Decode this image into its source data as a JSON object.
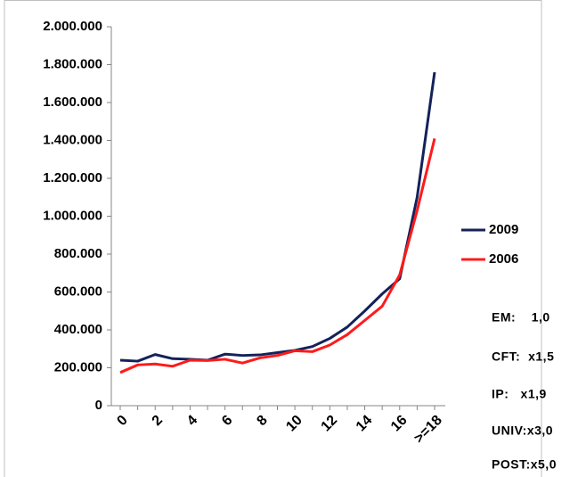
{
  "chart_data": {
    "type": "line",
    "categories": [
      "0",
      null,
      "2",
      null,
      "4",
      null,
      "6",
      null,
      "8",
      null,
      "10",
      null,
      "12",
      null,
      "14",
      null,
      "16",
      null,
      ">=18"
    ],
    "series": [
      {
        "name": "2009",
        "color": "#14225a",
        "values": [
          240000,
          235000,
          270000,
          248000,
          245000,
          240000,
          272000,
          265000,
          268000,
          280000,
          292000,
          312000,
          355000,
          415000,
          500000,
          590000,
          670000,
          1100000,
          1760000
        ]
      },
      {
        "name": "2006",
        "color": "#ff1a1a",
        "values": [
          175000,
          215000,
          220000,
          208000,
          240000,
          238000,
          245000,
          225000,
          252000,
          265000,
          290000,
          285000,
          320000,
          375000,
          450000,
          525000,
          690000,
          1030000,
          1410000
        ]
      }
    ],
    "ylim": [
      0,
      2000000
    ],
    "yticks": [
      0,
      {
        "value": 200000,
        "label": "200.000"
      },
      {
        "value": 400000,
        "label": "400.000"
      },
      {
        "value": 600000,
        "label": "600.000"
      },
      {
        "value": 800000,
        "label": "800.000"
      },
      {
        "value": 1000000,
        "label": "1.000.000"
      },
      {
        "value": 1200000,
        "label": "1.200.000"
      },
      {
        "value": 1400000,
        "label": "1.400.000"
      },
      {
        "value": 1600000,
        "label": "1.600.000"
      },
      {
        "value": 1800000,
        "label": "1.800.000"
      },
      {
        "value": 2000000,
        "label": "2.000.000"
      }
    ],
    "grid": false,
    "legend": "right",
    "annotations": [
      "EM:    1,0",
      "CFT:  x1,5",
      "IP:   x1,9",
      "UNIV:x3,0",
      "POST:x5,0"
    ]
  }
}
